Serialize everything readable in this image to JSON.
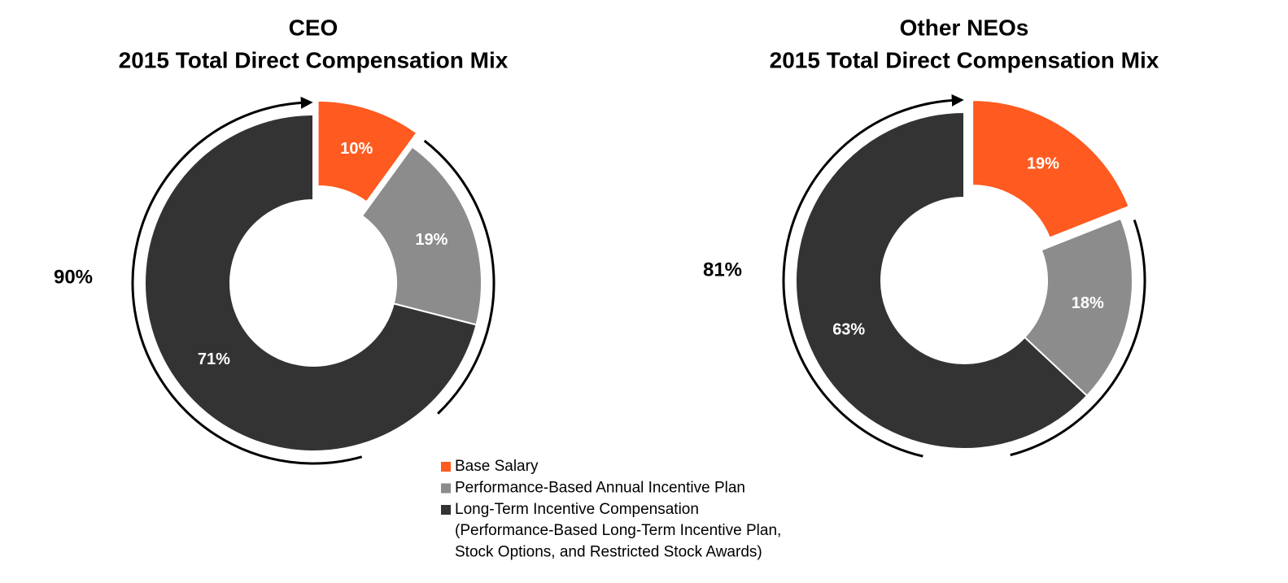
{
  "chart_data": [
    {
      "type": "donut",
      "title": "CEO",
      "subtitle": "2015 Total Direct Compensation Mix",
      "values": [
        10,
        19,
        71
      ],
      "value_labels": [
        "10%",
        "19%",
        "71%"
      ],
      "colors": [
        "#ff5a1f",
        "#8c8c8c",
        "#333333"
      ],
      "annotation": "90%"
    },
    {
      "type": "donut",
      "title": "Other NEOs",
      "subtitle": "2015 Total Direct Compensation Mix",
      "values": [
        19,
        18,
        63
      ],
      "value_labels": [
        "19%",
        "18%",
        "63%"
      ],
      "colors": [
        "#ff5a1f",
        "#8c8c8c",
        "#333333"
      ],
      "annotation": "81%"
    }
  ],
  "legend": {
    "labels": [
      "Base Salary",
      "Performance-Based Annual Incentive Plan",
      "Long-Term Incentive Compensation"
    ],
    "note": [
      "(Performance-Based Long-Term Incentive Plan,",
      "Stock Options, and Restricted Stock Awards)"
    ]
  }
}
